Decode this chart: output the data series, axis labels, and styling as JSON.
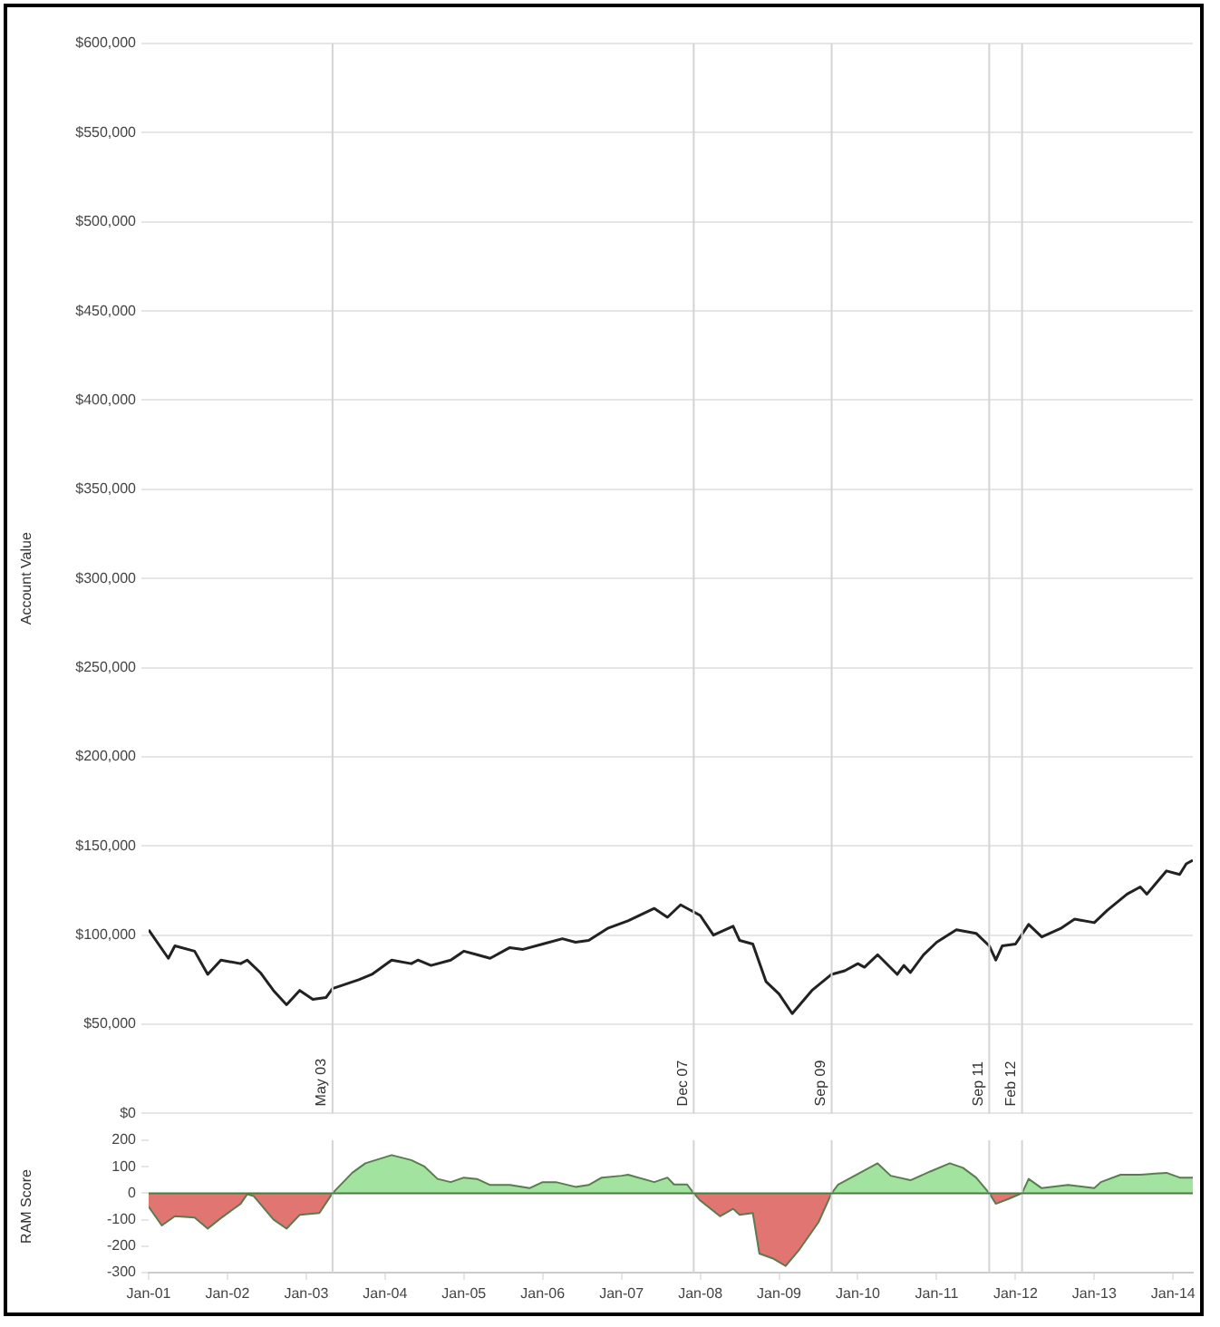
{
  "chart_data": [
    {
      "type": "line",
      "ylabel": "Account Value",
      "xlim": [
        "2001-01",
        "2014-04"
      ],
      "ylim": [
        0,
        600000
      ],
      "yticks": [
        {
          "value": 0,
          "label": "$0"
        },
        {
          "value": 50000,
          "label": "$50,000"
        },
        {
          "value": 100000,
          "label": "$100,000"
        },
        {
          "value": 150000,
          "label": "$150,000"
        },
        {
          "value": 200000,
          "label": "$200,000"
        },
        {
          "value": 250000,
          "label": "$250,000"
        },
        {
          "value": 300000,
          "label": "$300,000"
        },
        {
          "value": 350000,
          "label": "$350,000"
        },
        {
          "value": 400000,
          "label": "$400,000"
        },
        {
          "value": 450000,
          "label": "$450,000"
        },
        {
          "value": 500000,
          "label": "$500,000"
        },
        {
          "value": 550000,
          "label": "$550,000"
        },
        {
          "value": 600000,
          "label": "$600,000"
        }
      ],
      "x": [
        "2001-01",
        "2001-04",
        "2001-05",
        "2001-08",
        "2001-10",
        "2001-12",
        "2002-03",
        "2002-04",
        "2002-06",
        "2002-08",
        "2002-10",
        "2002-12",
        "2003-02",
        "2003-04",
        "2003-05",
        "2003-09",
        "2003-11",
        "2004-02",
        "2004-05",
        "2004-06",
        "2004-08",
        "2004-11",
        "2005-01",
        "2005-03",
        "2005-05",
        "2005-08",
        "2005-10",
        "2006-01",
        "2006-04",
        "2006-06",
        "2006-08",
        "2006-11",
        "2007-02",
        "2007-06",
        "2007-08",
        "2007-10",
        "2008-01",
        "2008-03",
        "2008-06",
        "2008-07",
        "2008-09",
        "2008-11",
        "2009-01",
        "2009-03",
        "2009-06",
        "2009-09",
        "2009-11",
        "2010-01",
        "2010-02",
        "2010-04",
        "2010-07",
        "2010-08",
        "2010-09",
        "2010-11",
        "2011-01",
        "2011-04",
        "2011-07",
        "2011-09",
        "2011-10",
        "2011-11",
        "2012-01",
        "2012-03",
        "2012-05",
        "2012-08",
        "2012-10",
        "2013-01",
        "2013-03",
        "2013-06",
        "2013-08",
        "2013-09",
        "2013-12",
        "2014-02",
        "2014-03",
        "2014-04"
      ],
      "series": [
        {
          "color": "#222222",
          "values": [
            103000,
            87000,
            94000,
            91000,
            78000,
            86000,
            84000,
            86000,
            79000,
            69000,
            61000,
            69000,
            64000,
            65000,
            70000,
            75000,
            78000,
            86000,
            84000,
            86000,
            83000,
            86000,
            91000,
            89000,
            87000,
            93000,
            92000,
            95000,
            98000,
            96000,
            97000,
            104000,
            108000,
            115000,
            110000,
            117000,
            111000,
            100000,
            105000,
            97000,
            95000,
            74000,
            67000,
            56000,
            69000,
            78000,
            80000,
            84000,
            82000,
            89000,
            78000,
            83000,
            79000,
            89000,
            96000,
            103000,
            101000,
            94000,
            86000,
            94000,
            95000,
            106000,
            99000,
            104000,
            109000,
            107000,
            114000,
            123000,
            127000,
            123000,
            136000,
            134000,
            140000,
            142000
          ]
        }
      ],
      "ref_lines": [
        {
          "axis": "x",
          "value": "2003-05",
          "label": "May 03"
        },
        {
          "axis": "x",
          "value": "2007-12",
          "label": "Dec 07"
        },
        {
          "axis": "x",
          "value": "2009-09",
          "label": "Sep 09"
        },
        {
          "axis": "x",
          "value": "2011-09",
          "label": "Sep 11"
        },
        {
          "axis": "x",
          "value": "2012-02",
          "label": "Feb 12"
        }
      ],
      "grid": "y",
      "legend": false,
      "tick_labels": "y",
      "marker": "none",
      "line_style": "solid"
    },
    {
      "type": "area",
      "ylabel": "RAM Score",
      "xlim": [
        "2001-01",
        "2014-04"
      ],
      "xticks": [
        {
          "value": "2001-01",
          "label": "Jan-01"
        },
        {
          "value": "2002-01",
          "label": "Jan-02"
        },
        {
          "value": "2003-01",
          "label": "Jan-03"
        },
        {
          "value": "2004-01",
          "label": "Jan-04"
        },
        {
          "value": "2005-01",
          "label": "Jan-05"
        },
        {
          "value": "2006-01",
          "label": "Jan-06"
        },
        {
          "value": "2007-01",
          "label": "Jan-07"
        },
        {
          "value": "2008-01",
          "label": "Jan-08"
        },
        {
          "value": "2009-01",
          "label": "Jan-09"
        },
        {
          "value": "2010-01",
          "label": "Jan-10"
        },
        {
          "value": "2011-01",
          "label": "Jan-11"
        },
        {
          "value": "2012-01",
          "label": "Jan-12"
        },
        {
          "value": "2013-01",
          "label": "Jan-13"
        },
        {
          "value": "2014-01",
          "label": "Jan-14"
        }
      ],
      "ylim": [
        -300,
        200
      ],
      "yticks": [
        -300,
        -200,
        -100,
        0,
        100,
        200
      ],
      "x": [
        "2001-01",
        "2001-03",
        "2001-05",
        "2001-08",
        "2001-10",
        "2001-12",
        "2002-03",
        "2002-04",
        "2002-05",
        "2002-08",
        "2002-10",
        "2002-12",
        "2003-03",
        "2003-05",
        "2003-08",
        "2003-10",
        "2004-02",
        "2004-05",
        "2004-07",
        "2004-09",
        "2004-11",
        "2005-01",
        "2005-03",
        "2005-05",
        "2005-08",
        "2005-11",
        "2006-01",
        "2006-03",
        "2006-06",
        "2006-08",
        "2006-10",
        "2007-01",
        "2007-02",
        "2007-06",
        "2007-08",
        "2007-09",
        "2007-11",
        "2007-12",
        "2008-01",
        "2008-04",
        "2008-06",
        "2008-07",
        "2008-09",
        "2008-10",
        "2008-12",
        "2009-02",
        "2009-04",
        "2009-07",
        "2009-09",
        "2009-10",
        "2010-01",
        "2010-04",
        "2010-06",
        "2010-09",
        "2010-12",
        "2011-03",
        "2011-05",
        "2011-07",
        "2011-09",
        "2011-10",
        "2011-12",
        "2012-02",
        "2012-03",
        "2012-05",
        "2012-09",
        "2013-01",
        "2013-02",
        "2013-05",
        "2013-08",
        "2013-12",
        "2014-02",
        "2014-04"
      ],
      "series": [
        {
          "color": "#e07572",
          "values": [
            -51,
            -122,
            -87,
            -92,
            -134,
            -94,
            -40,
            -4,
            -11,
            -99,
            -134,
            -82,
            -75,
            0,
            null,
            null,
            null,
            null,
            null,
            null,
            null,
            null,
            null,
            null,
            null,
            null,
            null,
            null,
            null,
            null,
            null,
            null,
            null,
            null,
            null,
            null,
            null,
            0,
            -28,
            -87,
            -59,
            -82,
            -75,
            -228,
            -246,
            -275,
            -216,
            -110,
            0,
            null,
            null,
            null,
            null,
            null,
            null,
            null,
            null,
            null,
            0,
            -40,
            -21,
            0,
            null,
            null,
            null,
            null,
            null,
            null,
            null,
            null,
            null,
            null
          ]
        },
        {
          "color": "#a3e3a0",
          "values": [
            null,
            null,
            null,
            null,
            null,
            null,
            null,
            null,
            null,
            null,
            null,
            null,
            null,
            0,
            77,
            113,
            144,
            125,
            101,
            54,
            42,
            59,
            54,
            31,
            31,
            19,
            42,
            42,
            24,
            31,
            59,
            66,
            70,
            42,
            59,
            33,
            33,
            0,
            null,
            null,
            null,
            null,
            null,
            null,
            null,
            null,
            null,
            null,
            0,
            33,
            73,
            113,
            66,
            49,
            82,
            113,
            96,
            59,
            0,
            null,
            null,
            0,
            54,
            19,
            31,
            19,
            42,
            70,
            70,
            77,
            59,
            59
          ]
        }
      ],
      "ref_lines": [
        {
          "axis": "x",
          "value": "2003-05"
        },
        {
          "axis": "x",
          "value": "2007-12"
        },
        {
          "axis": "x",
          "value": "2009-09"
        },
        {
          "axis": "x",
          "value": "2011-09"
        },
        {
          "axis": "x",
          "value": "2012-02"
        },
        {
          "axis": "y",
          "value": 0,
          "color": "#4a7a40"
        }
      ],
      "grid": false,
      "legend": false,
      "marker": "none",
      "line_style": "solid"
    }
  ]
}
